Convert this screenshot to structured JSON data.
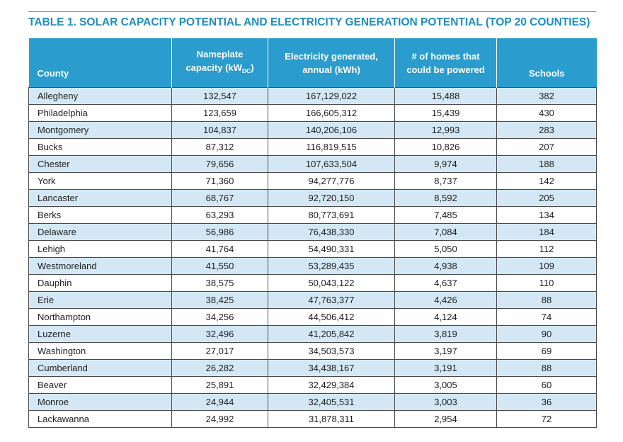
{
  "title": "TABLE 1. SOLAR CAPACITY POTENTIAL AND ELECTRICITY GENERATION POTENTIAL (TOP 20 COUNTIES)",
  "headers": {
    "county": "County",
    "capacity_line1": "Nameplate",
    "capacity_line2": "capacity (kW",
    "capacity_sub": "DC",
    "capacity_close": ")",
    "electricity_line1": "Electricity generated,",
    "electricity_line2": "annual (kWh)",
    "homes_line1": "# of homes that",
    "homes_line2": "could be powered",
    "schools": "Schools"
  },
  "colors": {
    "title": "#1f8dbf",
    "header_bg": "#2a9ccd",
    "row_alt": "#d3e8f4"
  },
  "rows": [
    {
      "county": "Allegheny",
      "capacity": "132,547",
      "electricity": "167,129,022",
      "homes": "15,488",
      "schools": "382"
    },
    {
      "county": "Philadelphia",
      "capacity": "123,659",
      "electricity": "166,605,312",
      "homes": "15,439",
      "schools": "430"
    },
    {
      "county": "Montgomery",
      "capacity": "104,837",
      "electricity": "140,206,106",
      "homes": "12,993",
      "schools": "283"
    },
    {
      "county": "Bucks",
      "capacity": "87,312",
      "electricity": "116,819,515",
      "homes": "10,826",
      "schools": "207"
    },
    {
      "county": "Chester",
      "capacity": "79,656",
      "electricity": "107,633,504",
      "homes": "9,974",
      "schools": "188"
    },
    {
      "county": "York",
      "capacity": "71,360",
      "electricity": "94,277,776",
      "homes": "8,737",
      "schools": "142"
    },
    {
      "county": "Lancaster",
      "capacity": "68,767",
      "electricity": "92,720,150",
      "homes": "8,592",
      "schools": "205"
    },
    {
      "county": "Berks",
      "capacity": "63,293",
      "electricity": "80,773,691",
      "homes": "7,485",
      "schools": "134"
    },
    {
      "county": "Delaware",
      "capacity": "56,986",
      "electricity": "76,438,330",
      "homes": "7,084",
      "schools": "184"
    },
    {
      "county": "Lehigh",
      "capacity": "41,764",
      "electricity": "54,490,331",
      "homes": "5,050",
      "schools": "112"
    },
    {
      "county": "Westmoreland",
      "capacity": "41,550",
      "electricity": "53,289,435",
      "homes": "4,938",
      "schools": "109"
    },
    {
      "county": "Dauphin",
      "capacity": "38,575",
      "electricity": "50,043,122",
      "homes": "4,637",
      "schools": "110"
    },
    {
      "county": "Erie",
      "capacity": "38,425",
      "electricity": "47,763,377",
      "homes": "4,426",
      "schools": "88"
    },
    {
      "county": "Northampton",
      "capacity": "34,256",
      "electricity": "44,506,412",
      "homes": "4,124",
      "schools": "74"
    },
    {
      "county": "Luzerne",
      "capacity": "32,496",
      "electricity": "41,205,842",
      "homes": "3,819",
      "schools": "90"
    },
    {
      "county": "Washington",
      "capacity": "27,017",
      "electricity": "34,503,573",
      "homes": "3,197",
      "schools": "69"
    },
    {
      "county": "Cumberland",
      "capacity": "26,282",
      "electricity": "34,438,167",
      "homes": "3,191",
      "schools": "88"
    },
    {
      "county": "Beaver",
      "capacity": "25,891",
      "electricity": "32,429,384",
      "homes": "3,005",
      "schools": "60"
    },
    {
      "county": "Monroe",
      "capacity": "24,944",
      "electricity": "32,405,531",
      "homes": "3,003",
      "schools": "36"
    },
    {
      "county": "Lackawanna",
      "capacity": "24,992",
      "electricity": "31,878,311",
      "homes": "2,954",
      "schools": "72"
    }
  ]
}
